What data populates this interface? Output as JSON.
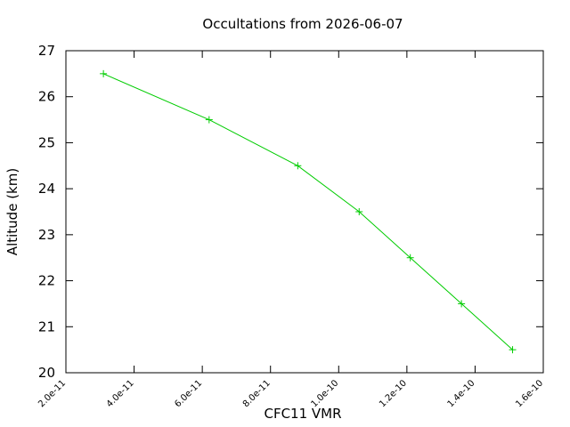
{
  "chart_data": {
    "type": "line",
    "title": "Occultations from 2026-06-07",
    "xlabel": "CFC11 VMR",
    "ylabel": "Altitude (km)",
    "xlim": [
      2e-11,
      1.6e-10
    ],
    "ylim": [
      20,
      27
    ],
    "xticks": [
      2e-11,
      4e-11,
      6e-11,
      8e-11,
      1e-10,
      1.2e-10,
      1.4e-10,
      1.6e-10
    ],
    "xtick_labels": [
      "2.0e-11",
      "4.0e-11",
      "6.0e-11",
      "8.0e-11",
      "1.0e-10",
      "1.2e-10",
      "1.4e-10",
      "1.6e-10"
    ],
    "yticks": [
      20,
      21,
      22,
      23,
      24,
      25,
      26,
      27
    ],
    "ytick_labels": [
      "20",
      "21",
      "22",
      "23",
      "24",
      "25",
      "26",
      "27"
    ],
    "grid": false,
    "line_color": "#00cc00",
    "marker": "plus",
    "series": [
      {
        "x": [
          3.1e-11,
          6.2e-11,
          8.8e-11,
          1.06e-10,
          1.21e-10,
          1.36e-10,
          1.51e-10
        ],
        "y": [
          26.5,
          25.5,
          24.5,
          23.5,
          22.5,
          21.5,
          20.5
        ]
      }
    ]
  }
}
